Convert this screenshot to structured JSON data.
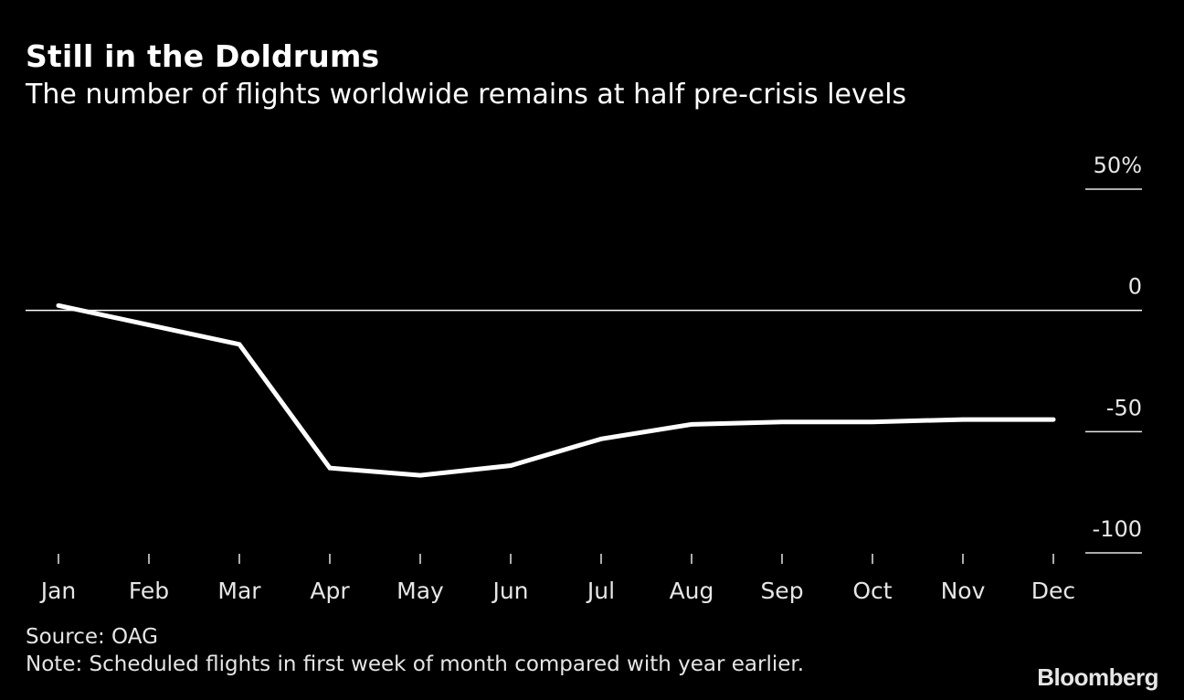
{
  "header": {
    "title": "Still in the Doldrums",
    "subtitle": "The number of flights worldwide remains at half pre-crisis levels"
  },
  "footer": {
    "source": "Source: OAG",
    "note": "Note: Scheduled flights in first week of month compared with year earlier.",
    "brand": "Bloomberg"
  },
  "colors": {
    "background": "#000000",
    "line": "#ffffff",
    "axis_text": "#e6e6e6"
  },
  "chart_data": {
    "type": "line",
    "title": "Still in the Doldrums",
    "subtitle": "The number of flights worldwide remains at half pre-crisis levels",
    "xlabel": "",
    "ylabel": "",
    "categories": [
      "Jan",
      "Feb",
      "Mar",
      "Apr",
      "May",
      "Jun",
      "Jul",
      "Aug",
      "Sep",
      "Oct",
      "Nov",
      "Dec"
    ],
    "series": [
      {
        "name": "Scheduled flights vs year earlier (%)",
        "values": [
          2,
          -6,
          -14,
          -65,
          -68,
          -64,
          -53,
          -47,
          -46,
          -46,
          -45,
          -45
        ]
      }
    ],
    "ylim": [
      -100,
      50
    ],
    "y_ticks": [
      50,
      0,
      -50,
      -100
    ],
    "y_tick_labels": [
      "50%",
      "0",
      "-50",
      "-100"
    ],
    "zero_line": true,
    "grid": false,
    "legend": "none"
  }
}
